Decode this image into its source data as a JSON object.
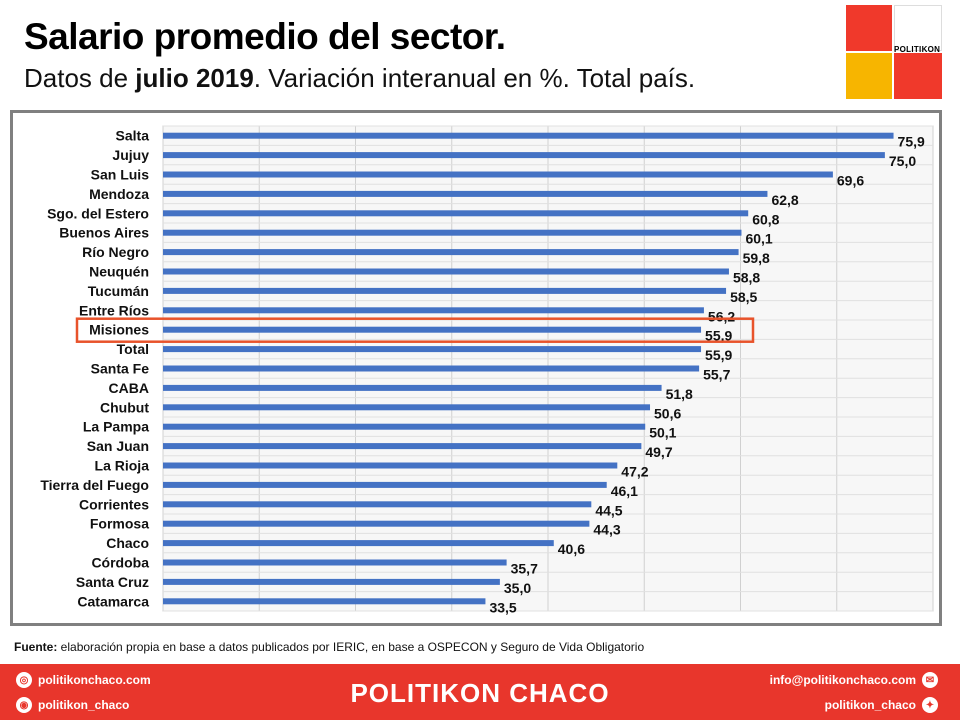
{
  "header": {
    "title": "Salario promedio del sector.",
    "subtitle_prefix": "Datos de ",
    "subtitle_bold": "julio 2019",
    "subtitle_suffix": ". Variación interanual en %. Total país."
  },
  "logo": {
    "text": "POLITIKON"
  },
  "chart_data": {
    "type": "bar",
    "orientation": "horizontal",
    "categories": [
      "Salta",
      "Jujuy",
      "San Luis",
      "Mendoza",
      "Sgo. del Estero",
      "Buenos Aires",
      "Río Negro",
      "Neuquén",
      "Tucumán",
      "Entre Ríos",
      "Misiones",
      "Total",
      "Santa Fe",
      "CABA",
      "Chubut",
      "La Pampa",
      "San Juan",
      "La Rioja",
      "Tierra del Fuego",
      "Corrientes",
      "Formosa",
      "Chaco",
      "Córdoba",
      "Santa Cruz",
      "Catamarca"
    ],
    "values": [
      75.9,
      75.0,
      69.6,
      62.8,
      60.8,
      60.1,
      59.8,
      58.8,
      58.5,
      56.2,
      55.9,
      55.9,
      55.7,
      51.8,
      50.6,
      50.1,
      49.7,
      47.2,
      46.1,
      44.5,
      44.3,
      40.6,
      35.7,
      35.0,
      33.5
    ],
    "value_labels": [
      "75,9",
      "75,0",
      "69,6",
      "62,8",
      "60,8",
      "60,1",
      "59,8",
      "58,8",
      "58,5",
      "56,2",
      "55,9",
      "55,9",
      "55,7",
      "51,8",
      "50,6",
      "50,1",
      "49,7",
      "47,2",
      "46,1",
      "44,5",
      "44,3",
      "40,6",
      "35,7",
      "35,0",
      "33,5"
    ],
    "highlight": "Misiones",
    "xlim": [
      0,
      80
    ],
    "grid": true,
    "bar_color": "#4472c4",
    "highlight_color": "#e8532b"
  },
  "source": {
    "label": "Fuente:",
    "text": " elaboración propia en base a datos publicados por IERIC, en base a OSPECON y Seguro de Vida Obligatorio"
  },
  "footer": {
    "brand": "POLITIKON CHACO",
    "web": "politikonchaco.com",
    "instagram": "politikon_chaco",
    "email": "info@politikonchaco.com",
    "twitter": "politikon_chaco",
    "accent": "#e8362c"
  }
}
